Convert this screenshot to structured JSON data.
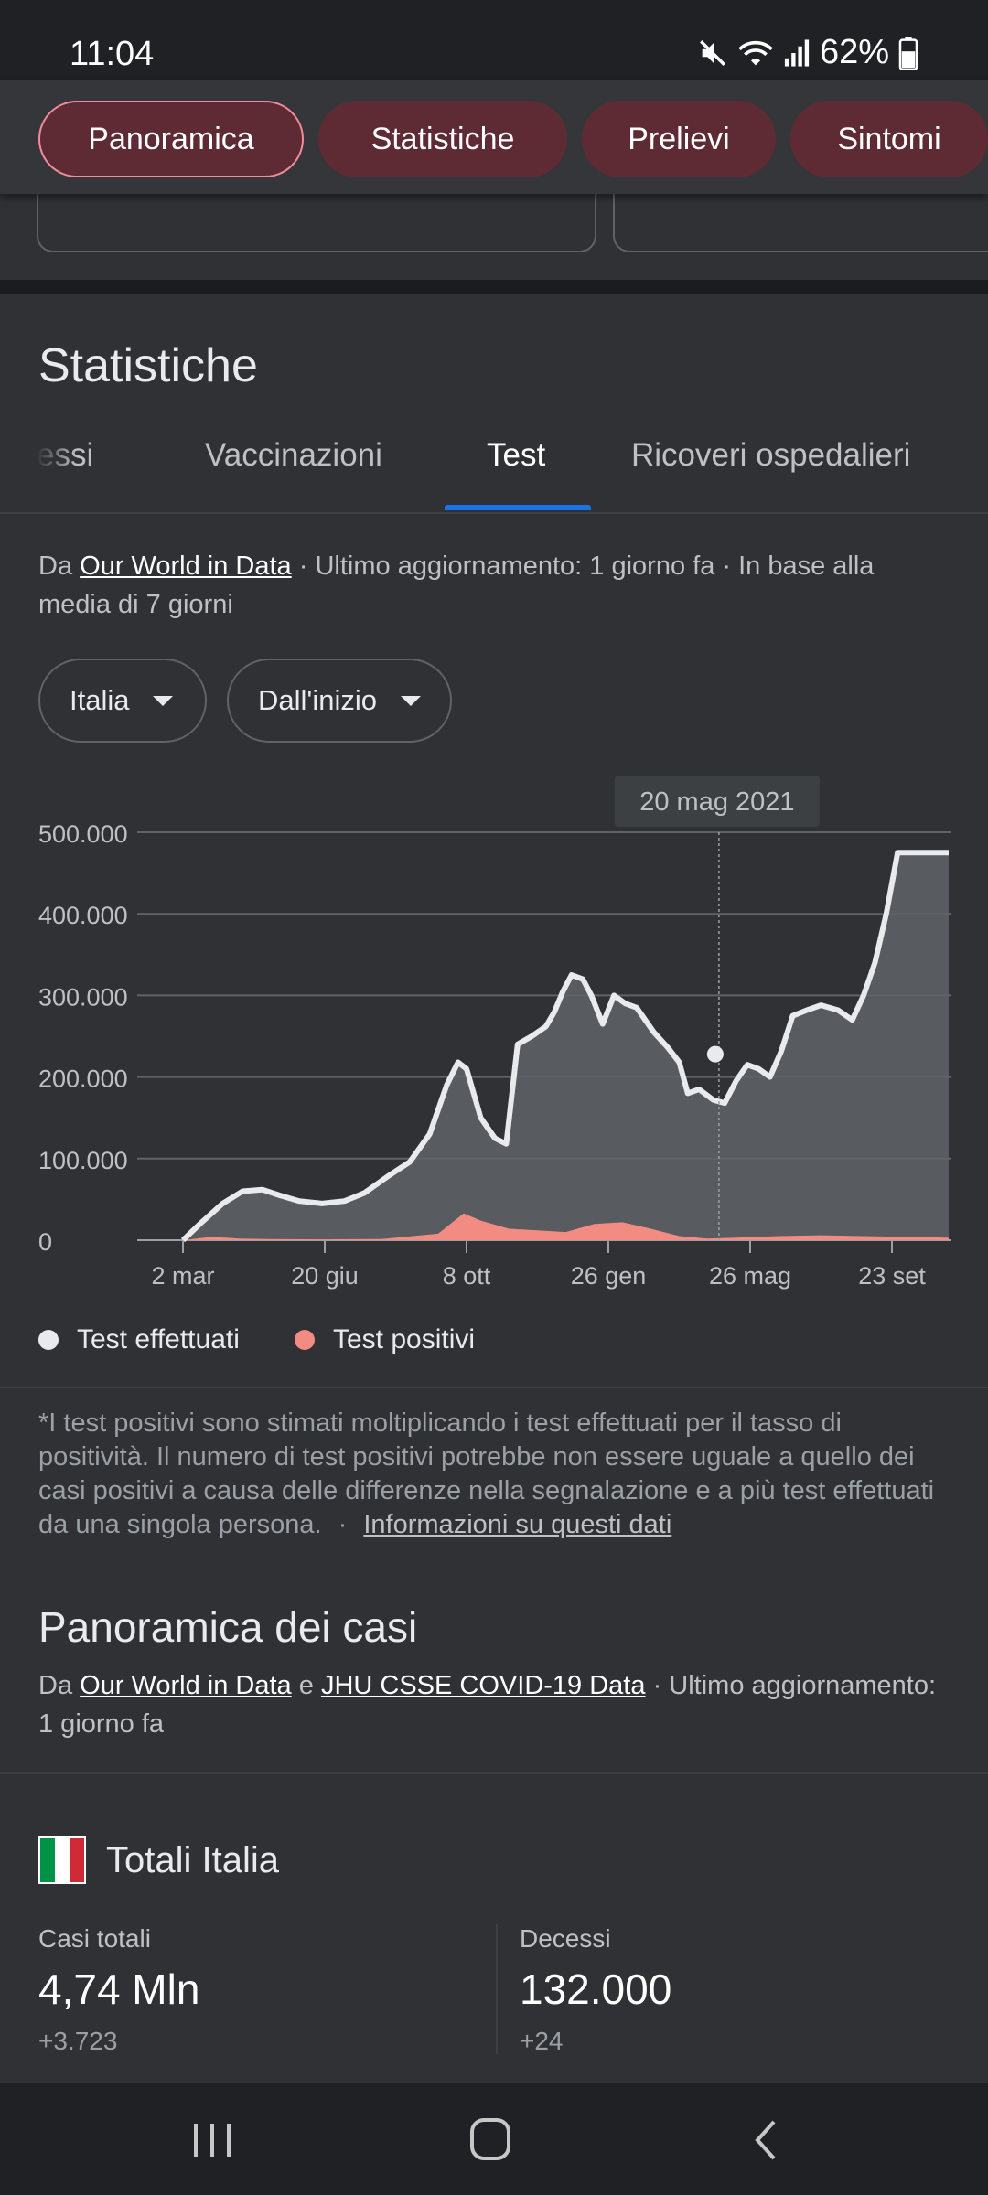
{
  "status_bar": {
    "time": "11:04",
    "battery": "62%",
    "icons": [
      "mute-icon",
      "wifi-icon",
      "signal-icon",
      "battery-icon"
    ]
  },
  "chips": [
    {
      "label": "Panoramica",
      "active": true
    },
    {
      "label": "Statistiche",
      "active": false
    },
    {
      "label": "Prelievi",
      "active": false
    },
    {
      "label": "Sintomi",
      "active": false
    }
  ],
  "section_title": "Statistiche",
  "tabs": [
    {
      "label": "essi",
      "active": false
    },
    {
      "label": "Vaccinazioni",
      "active": false
    },
    {
      "label": "Test",
      "active": true
    },
    {
      "label": "Ricoveri ospedalieri",
      "active": false
    }
  ],
  "source": {
    "prefix": "Da",
    "link": "Our World in Data",
    "suffix": "· Ultimo aggiornamento: 1 giorno fa · In base alla media di 7 giorni"
  },
  "filters": {
    "country": "Italia",
    "period": "Dall'inizio"
  },
  "chart_data": {
    "type": "area",
    "tooltip": "20 mag 2021",
    "ylim": [
      0,
      500000
    ],
    "y_ticks": [
      "500.000",
      "400.000",
      "300.000",
      "200.000",
      "100.000",
      "0"
    ],
    "y_tick_values": [
      500000,
      400000,
      300000,
      200000,
      100000,
      0
    ],
    "x_ticks": [
      "2 mar",
      "20 giu",
      "8 ott",
      "26 gen",
      "26 mag",
      "23 set"
    ],
    "x_label_positions": [
      0,
      1,
      2,
      3,
      4,
      5
    ],
    "series": [
      {
        "name": "Test effettuati",
        "color": "#e8eaed",
        "x": [
          0,
          0.12,
          0.28,
          0.42,
          0.56,
          0.68,
          0.82,
          0.98,
          1.14,
          1.28,
          1.46,
          1.6,
          1.74,
          1.86,
          1.94,
          2.0,
          2.1,
          2.2,
          2.28,
          2.36,
          2.46,
          2.56,
          2.62,
          2.68,
          2.74,
          2.82,
          2.88,
          2.96,
          3.04,
          3.12,
          3.2,
          3.32,
          3.42,
          3.5,
          3.56,
          3.64,
          3.74,
          3.82,
          3.9,
          3.98,
          4.06,
          4.14,
          4.22,
          4.3,
          4.4,
          4.5,
          4.62,
          4.72,
          4.8,
          4.88,
          4.96,
          5.04,
          5.14,
          5.22,
          5.3,
          5.34,
          5.38,
          5.4
        ],
        "values": [
          0,
          20000,
          45000,
          60000,
          62000,
          55000,
          48000,
          45000,
          48000,
          58000,
          80000,
          96000,
          130000,
          190000,
          218000,
          210000,
          150000,
          125000,
          118000,
          240000,
          250000,
          262000,
          280000,
          305000,
          325000,
          320000,
          300000,
          265000,
          300000,
          290000,
          285000,
          255000,
          236000,
          218000,
          180000,
          185000,
          172000,
          168000,
          195000,
          215000,
          210000,
          200000,
          232000,
          275000,
          282000,
          288000,
          282000,
          270000,
          300000,
          340000,
          400000,
          475000,
          475000,
          475000,
          475000,
          475000,
          475000,
          475000
        ]
      },
      {
        "name": "Test positivi",
        "color": "#f28b82",
        "x": [
          0,
          0.2,
          0.4,
          0.6,
          1.0,
          1.4,
          1.8,
          1.98,
          2.1,
          2.3,
          2.5,
          2.7,
          2.9,
          3.1,
          3.3,
          3.5,
          3.7,
          3.9,
          4.2,
          4.5,
          4.8,
          5.1,
          5.4
        ],
        "values": [
          0,
          4000,
          2000,
          1500,
          1000,
          1500,
          8000,
          33000,
          24000,
          14000,
          12000,
          10000,
          20000,
          22000,
          14000,
          5000,
          2000,
          3000,
          5000,
          6000,
          5000,
          4000,
          3000
        ]
      }
    ],
    "legend_position": "bottom-left",
    "grid": true
  },
  "legend": [
    {
      "label": "Test effettuati",
      "color": "#e8eaed"
    },
    {
      "label": "Test positivi",
      "color": "#f28b82"
    }
  ],
  "footnote": {
    "text": "*I test positivi sono stimati moltiplicando i test effettuati per il tasso di positività. Il numero di test positivi potrebbe non essere uguale a quello dei casi positivi a causa delle differenze nella segnalazione e a più test effettuati da una singola persona.",
    "sep": "·",
    "link": "Informazioni su questi dati"
  },
  "cases": {
    "title": "Panoramica dei casi",
    "prefix": "Da",
    "link1": "Our World in Data",
    "and": "e",
    "link2": "JHU CSSE COVID-19 Data",
    "suffix": "· Ultimo aggiornamento: 1 giorno fa"
  },
  "totals": {
    "label": "Totali Italia",
    "flag_colors": [
      "#009246",
      "#ffffff",
      "#ce2b37"
    ],
    "stats": [
      {
        "label": "Casi totali",
        "value": "4,74 Mln",
        "delta": "+3.723"
      },
      {
        "label": "Decessi",
        "value": "132.000",
        "delta": "+24"
      }
    ]
  },
  "nav": [
    "recent-apps-icon",
    "home-icon",
    "back-icon"
  ]
}
